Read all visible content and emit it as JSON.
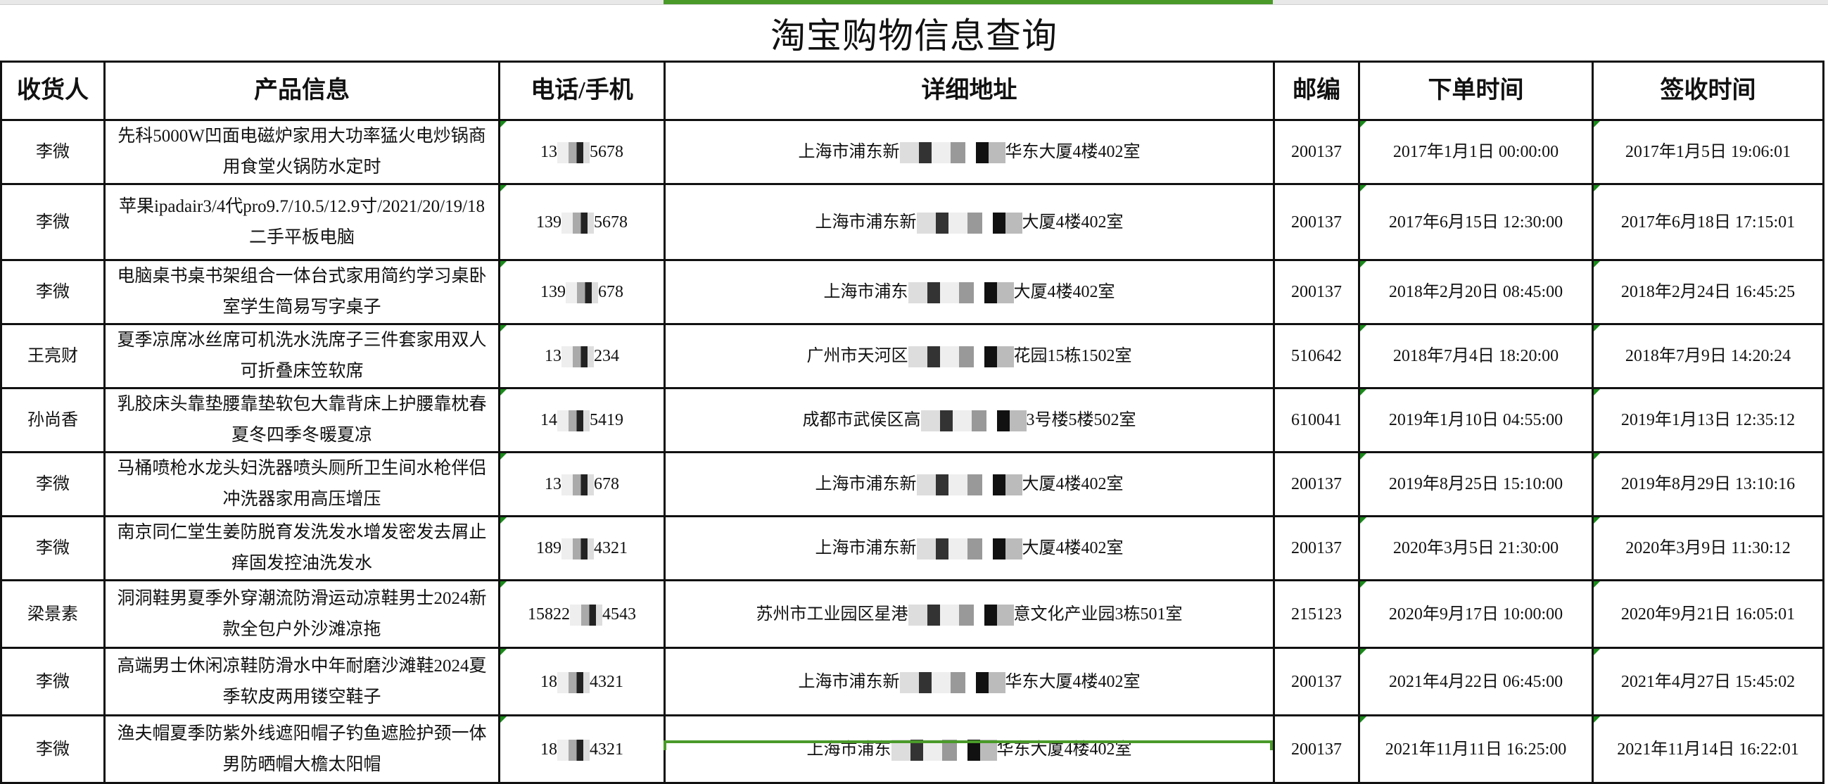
{
  "title": "淘宝购物信息查询",
  "headers": [
    "收货人",
    "产品信息",
    "电话/手机",
    "详细地址",
    "邮编",
    "下单时间",
    "签收时间"
  ],
  "rows": [
    {
      "name": "李微",
      "product": "先科5000W凹面电磁炉家用大功率猛火电炒锅商用食堂火锅防水定时",
      "phone_prefix": "13",
      "phone_suffix": "5678",
      "addr_prefix": "上海市浦东新",
      "addr_suffix": "华东大厦4楼402室",
      "zip": "200137",
      "order_time": "2017年1月1日 00:00:00",
      "sign_time": "2017年1月5日 19:06:01"
    },
    {
      "name": "李微",
      "product": "苹果ipadair3/4代pro9.7/10.5/12.9寸/2021/20/19/18二手平板电脑",
      "phone_prefix": "139",
      "phone_suffix": "5678",
      "addr_prefix": "上海市浦东新",
      "addr_suffix": "大厦4楼402室",
      "zip": "200137",
      "order_time": "2017年6月15日 12:30:00",
      "sign_time": "2017年6月18日 17:15:01"
    },
    {
      "name": "李微",
      "product": "电脑桌书桌书架组合一体台式家用简约学习桌卧室学生简易写字桌子",
      "phone_prefix": "139",
      "phone_suffix": "678",
      "addr_prefix": "上海市浦东",
      "addr_suffix": "大厦4楼402室",
      "zip": "200137",
      "order_time": "2018年2月20日 08:45:00",
      "sign_time": "2018年2月24日 16:45:25"
    },
    {
      "name": "王亮财",
      "product": "夏季凉席冰丝席可机洗水洗席子三件套家用双人可折叠床笠软席",
      "phone_prefix": "13",
      "phone_suffix": "234",
      "addr_prefix": "广州市天河区",
      "addr_suffix": "花园15栋1502室",
      "zip": "510642",
      "order_time": "2018年7月4日 18:20:00",
      "sign_time": "2018年7月9日 14:20:24"
    },
    {
      "name": "孙尚香",
      "product": "乳胶床头靠垫腰靠垫软包大靠背床上护腰靠枕春夏冬四季冬暖夏凉",
      "phone_prefix": "14",
      "phone_suffix": "5419",
      "addr_prefix": "成都市武侯区高",
      "addr_suffix": "3号楼5楼502室",
      "zip": "610041",
      "order_time": "2019年1月10日 04:55:00",
      "sign_time": "2019年1月13日 12:35:12"
    },
    {
      "name": "李微",
      "product": "马桶喷枪水龙头妇洗器喷头厕所卫生间水枪伴侣冲洗器家用高压增压",
      "phone_prefix": "13",
      "phone_suffix": "678",
      "addr_prefix": "上海市浦东新",
      "addr_suffix": "大厦4楼402室",
      "zip": "200137",
      "order_time": "2019年8月25日 15:10:00",
      "sign_time": "2019年8月29日 13:10:16"
    },
    {
      "name": "李微",
      "product": "南京同仁堂生姜防脱育发洗发水增发密发去屑止痒固发控油洗发水",
      "phone_prefix": "189",
      "phone_suffix": "4321",
      "addr_prefix": "上海市浦东新",
      "addr_suffix": "大厦4楼402室",
      "zip": "200137",
      "order_time": "2020年3月5日 21:30:00",
      "sign_time": "2020年3月9日 11:30:12"
    },
    {
      "name": "梁景素",
      "product": "洞洞鞋男夏季外穿潮流防滑运动凉鞋男士2024新款全包户外沙滩凉拖",
      "phone_prefix": "15822",
      "phone_suffix": "4543",
      "addr_prefix": "苏州市工业园区星港",
      "addr_suffix": "意文化产业园3栋501室",
      "zip": "215123",
      "order_time": "2020年9月17日 10:00:00",
      "sign_time": "2020年9月21日 16:05:01"
    },
    {
      "name": "李微",
      "product": "高端男士休闲凉鞋防滑水中年耐磨沙滩鞋2024夏季软皮两用镂空鞋子",
      "phone_prefix": "18",
      "phone_suffix": "4321",
      "addr_prefix": "上海市浦东新",
      "addr_suffix": "华东大厦4楼402室",
      "zip": "200137",
      "order_time": "2021年4月22日 06:45:00",
      "sign_time": "2021年4月27日 15:45:02"
    },
    {
      "name": "李微",
      "product": "渔夫帽夏季防紫外线遮阳帽子钓鱼遮脸护颈一体男防晒帽大檐太阳帽",
      "phone_prefix": "18",
      "phone_suffix": "4321",
      "addr_prefix": "上海市浦东",
      "addr_suffix": "华东大厦4楼402室",
      "zip": "200137",
      "order_time": "2021年11月11日 16:25:00",
      "sign_time": "2021年11月14日 16:22:01"
    }
  ],
  "colors": {
    "grid": "#111111",
    "selection": "#4a9a2a",
    "comment_marker": "#1a8a1a"
  }
}
